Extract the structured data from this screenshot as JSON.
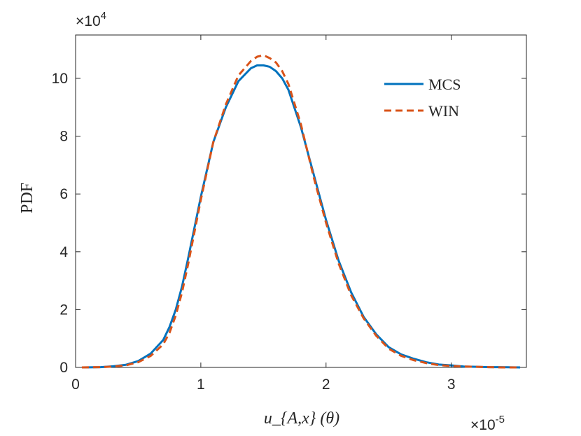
{
  "chart_data": {
    "type": "line",
    "title": "",
    "xlabel": "u_{A,x} (θ)",
    "ylabel": "PDF",
    "x_multiplier": "×10",
    "x_multiplier_exp": "-5",
    "y_multiplier": "×10",
    "y_multiplier_exp": "4",
    "xlim": [
      0,
      3.6
    ],
    "ylim": [
      0,
      11.5
    ],
    "x_ticks": [
      0,
      1,
      2,
      3
    ],
    "x_tick_labels": [
      "0",
      "1",
      "2",
      "3"
    ],
    "y_ticks": [
      0,
      2,
      4,
      6,
      8,
      10
    ],
    "y_tick_labels": [
      "0",
      "2",
      "4",
      "6",
      "8",
      "10"
    ],
    "grid": false,
    "legend_position": "top-right",
    "series": [
      {
        "name": "MCS",
        "color": "#0072BD",
        "style": "solid",
        "x": [
          0.05,
          0.2,
          0.3,
          0.4,
          0.5,
          0.6,
          0.7,
          0.75,
          0.8,
          0.85,
          0.9,
          1.0,
          1.1,
          1.2,
          1.3,
          1.4,
          1.45,
          1.5,
          1.55,
          1.6,
          1.65,
          1.7,
          1.8,
          1.9,
          2.0,
          2.1,
          2.2,
          2.3,
          2.4,
          2.5,
          2.6,
          2.7,
          2.8,
          2.9,
          3.0,
          3.1,
          3.2,
          3.3,
          3.4,
          3.55
        ],
        "y": [
          0.0,
          0.01,
          0.04,
          0.09,
          0.22,
          0.48,
          0.95,
          1.4,
          2.0,
          2.8,
          3.8,
          5.9,
          7.8,
          9.0,
          9.9,
          10.35,
          10.45,
          10.45,
          10.4,
          10.25,
          10.0,
          9.6,
          8.3,
          6.7,
          5.1,
          3.7,
          2.6,
          1.75,
          1.15,
          0.7,
          0.45,
          0.3,
          0.18,
          0.1,
          0.07,
          0.03,
          0.02,
          0.01,
          0.01,
          0.0
        ]
      },
      {
        "name": "WIN",
        "color": "#D95319",
        "style": "dashed",
        "x": [
          0.05,
          0.2,
          0.3,
          0.4,
          0.5,
          0.6,
          0.7,
          0.75,
          0.8,
          0.85,
          0.9,
          1.0,
          1.1,
          1.2,
          1.3,
          1.4,
          1.45,
          1.5,
          1.55,
          1.6,
          1.65,
          1.7,
          1.8,
          1.9,
          2.0,
          2.1,
          2.2,
          2.3,
          2.4,
          2.5,
          2.6,
          2.7,
          2.8,
          2.9,
          3.0,
          3.1,
          3.2,
          3.3,
          3.4,
          3.55
        ],
        "y": [
          0.0,
          0.01,
          0.03,
          0.07,
          0.18,
          0.4,
          0.8,
          1.2,
          1.8,
          2.6,
          3.6,
          5.8,
          7.8,
          9.1,
          10.1,
          10.6,
          10.75,
          10.8,
          10.7,
          10.55,
          10.25,
          9.8,
          8.4,
          6.6,
          5.0,
          3.6,
          2.5,
          1.7,
          1.1,
          0.65,
          0.4,
          0.25,
          0.15,
          0.08,
          0.05,
          0.03,
          0.02,
          0.01,
          0.0,
          0.0
        ]
      }
    ]
  }
}
